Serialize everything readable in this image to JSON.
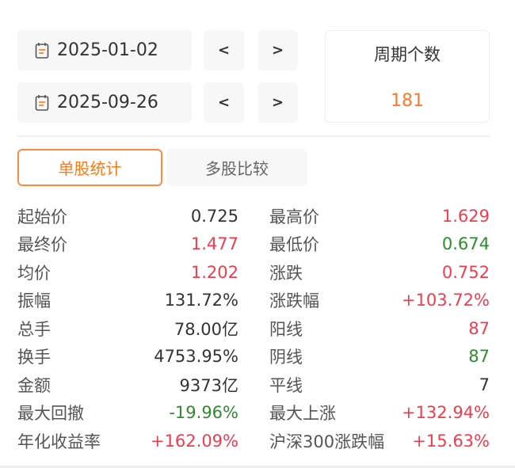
{
  "start_date": "2025-01-02",
  "end_date": "2025-09-26",
  "prev_label": "<",
  "next_label": ">",
  "period_card": {
    "title": "周期个数",
    "value": "181"
  },
  "tabs": [
    {
      "label": "单股统计",
      "active": true
    },
    {
      "label": "多股比较",
      "active": false
    }
  ],
  "colors": {
    "accent": "#ff7a1a",
    "up": "#f23b4e",
    "down": "#2e8b2e"
  },
  "left_stats": [
    {
      "label": "起始价",
      "value": "0.725",
      "color": "black"
    },
    {
      "label": "最终价",
      "value": "1.477",
      "color": "red"
    },
    {
      "label": "均价",
      "value": "1.202",
      "color": "red"
    },
    {
      "label": "振幅",
      "value": "131.72%",
      "color": "black"
    },
    {
      "label": "总手",
      "value": "78.00亿",
      "color": "black"
    },
    {
      "label": "换手",
      "value": "4753.95%",
      "color": "black"
    },
    {
      "label": "金额",
      "value": "9373亿",
      "color": "black"
    },
    {
      "label": "最大回撤",
      "value": "-19.96%",
      "color": "green"
    },
    {
      "label": "年化收益率",
      "value": "+162.09%",
      "color": "red"
    }
  ],
  "right_stats": [
    {
      "label": "最高价",
      "value": "1.629",
      "color": "red"
    },
    {
      "label": "最低价",
      "value": "0.674",
      "color": "green"
    },
    {
      "label": "涨跌",
      "value": "0.752",
      "color": "red"
    },
    {
      "label": "涨跌幅",
      "value": "+103.72%",
      "color": "red"
    },
    {
      "label": "阳线",
      "value": "87",
      "color": "red"
    },
    {
      "label": "阴线",
      "value": "87",
      "color": "green"
    },
    {
      "label": "平线",
      "value": "7",
      "color": "black"
    },
    {
      "label": "最大上涨",
      "value": "+132.94%",
      "color": "red"
    },
    {
      "label": "沪深300涨跌幅",
      "value": "+15.63%",
      "color": "red"
    }
  ]
}
